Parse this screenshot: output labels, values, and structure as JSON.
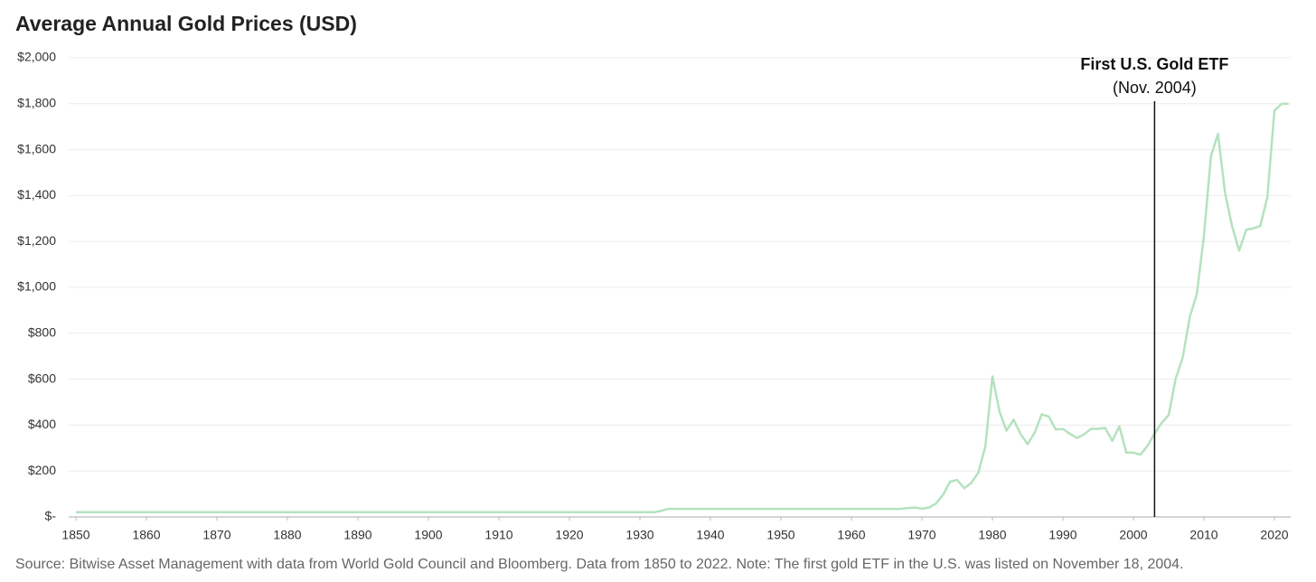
{
  "chart_data": {
    "type": "line",
    "title": "Average Annual Gold Prices (USD)",
    "source": "Source: Bitwise Asset Management with data from World Gold Council and Bloomberg. Data from 1850 to 2022. Note: The first gold ETF in the U.S. was listed on November 18, 2004.",
    "annotation": {
      "x": 2003,
      "title": "First U.S. Gold ETF",
      "subtitle": "(Nov. 2004)"
    },
    "x": [
      1850,
      1851,
      1852,
      1853,
      1854,
      1855,
      1856,
      1857,
      1858,
      1859,
      1860,
      1861,
      1862,
      1863,
      1864,
      1865,
      1866,
      1867,
      1868,
      1869,
      1870,
      1871,
      1872,
      1873,
      1874,
      1875,
      1876,
      1877,
      1878,
      1879,
      1880,
      1881,
      1882,
      1883,
      1884,
      1885,
      1886,
      1887,
      1888,
      1889,
      1890,
      1891,
      1892,
      1893,
      1894,
      1895,
      1896,
      1897,
      1898,
      1899,
      1900,
      1901,
      1902,
      1903,
      1904,
      1905,
      1906,
      1907,
      1908,
      1909,
      1910,
      1911,
      1912,
      1913,
      1914,
      1915,
      1916,
      1917,
      1918,
      1919,
      1920,
      1921,
      1922,
      1923,
      1924,
      1925,
      1926,
      1927,
      1928,
      1929,
      1930,
      1931,
      1932,
      1933,
      1934,
      1935,
      1936,
      1937,
      1938,
      1939,
      1940,
      1941,
      1942,
      1943,
      1944,
      1945,
      1946,
      1947,
      1948,
      1949,
      1950,
      1951,
      1952,
      1953,
      1954,
      1955,
      1956,
      1957,
      1958,
      1959,
      1960,
      1961,
      1962,
      1963,
      1964,
      1965,
      1966,
      1967,
      1968,
      1969,
      1970,
      1971,
      1972,
      1973,
      1974,
      1975,
      1976,
      1977,
      1978,
      1979,
      1980,
      1981,
      1982,
      1983,
      1984,
      1985,
      1986,
      1987,
      1988,
      1989,
      1990,
      1991,
      1992,
      1993,
      1994,
      1995,
      1996,
      1997,
      1998,
      1999,
      2000,
      2001,
      2002,
      2003,
      2004,
      2005,
      2006,
      2007,
      2008,
      2009,
      2010,
      2011,
      2012,
      2013,
      2014,
      2015,
      2016,
      2017,
      2018,
      2019,
      2020,
      2021,
      2022
    ],
    "series": [
      {
        "name": "Average Annual Gold Price",
        "color": "#b4e2bf",
        "values": [
          20.67,
          20.67,
          20.67,
          20.67,
          20.67,
          20.67,
          20.67,
          20.67,
          20.67,
          20.67,
          20.67,
          20.67,
          20.67,
          20.67,
          20.67,
          20.67,
          20.67,
          20.67,
          20.67,
          20.67,
          20.67,
          20.67,
          20.67,
          20.67,
          20.67,
          20.67,
          20.67,
          20.67,
          20.67,
          20.67,
          20.67,
          20.67,
          20.67,
          20.67,
          20.67,
          20.67,
          20.67,
          20.67,
          20.67,
          20.67,
          20.67,
          20.67,
          20.67,
          20.67,
          20.67,
          20.67,
          20.67,
          20.67,
          20.67,
          20.67,
          20.67,
          20.67,
          20.67,
          20.67,
          20.67,
          20.67,
          20.67,
          20.67,
          20.67,
          20.67,
          20.67,
          20.67,
          20.67,
          20.67,
          20.67,
          20.67,
          20.67,
          20.67,
          20.67,
          20.67,
          20.67,
          20.67,
          20.67,
          20.67,
          20.67,
          20.67,
          20.67,
          20.67,
          20.67,
          20.67,
          20.67,
          20.67,
          20.67,
          26,
          35,
          35,
          35,
          35,
          35,
          35,
          35,
          35,
          35,
          35,
          35,
          35,
          35,
          35,
          35,
          35,
          35,
          35,
          35,
          35,
          35,
          35,
          35,
          35,
          35,
          35,
          35,
          35,
          35,
          35,
          35,
          35,
          35,
          35,
          39,
          41,
          36,
          41,
          58,
          97,
          154,
          161,
          125,
          148,
          193,
          307,
          612,
          460,
          376,
          424,
          361,
          317,
          368,
          447,
          437,
          381,
          383,
          362,
          344,
          360,
          384,
          384,
          388,
          331,
          395,
          280,
          280,
          271,
          310,
          363,
          409,
          444,
          603,
          695,
          872,
          972,
          1225,
          1572,
          1669,
          1411,
          1266,
          1160,
          1251,
          1257,
          1268,
          1393,
          1770,
          1799,
          1800
        ]
      }
    ],
    "xlim": [
      1850,
      2022
    ],
    "xticks": [
      1850,
      1860,
      1870,
      1880,
      1890,
      1900,
      1910,
      1920,
      1930,
      1940,
      1950,
      1960,
      1970,
      1980,
      1990,
      2000,
      2010,
      2020
    ],
    "ylim": [
      0,
      2000
    ],
    "yticks": [
      {
        "value": 0,
        "label": "$-"
      },
      {
        "value": 200,
        "label": "$200"
      },
      {
        "value": 400,
        "label": "$400"
      },
      {
        "value": 600,
        "label": "$600"
      },
      {
        "value": 800,
        "label": "$800"
      },
      {
        "value": 1000,
        "label": "$1,000"
      },
      {
        "value": 1200,
        "label": "$1,200"
      },
      {
        "value": 1400,
        "label": "$1,400"
      },
      {
        "value": 1600,
        "label": "$1,600"
      },
      {
        "value": 1800,
        "label": "$1,800"
      },
      {
        "value": 2000,
        "label": "$2,000"
      }
    ],
    "grid": true
  }
}
